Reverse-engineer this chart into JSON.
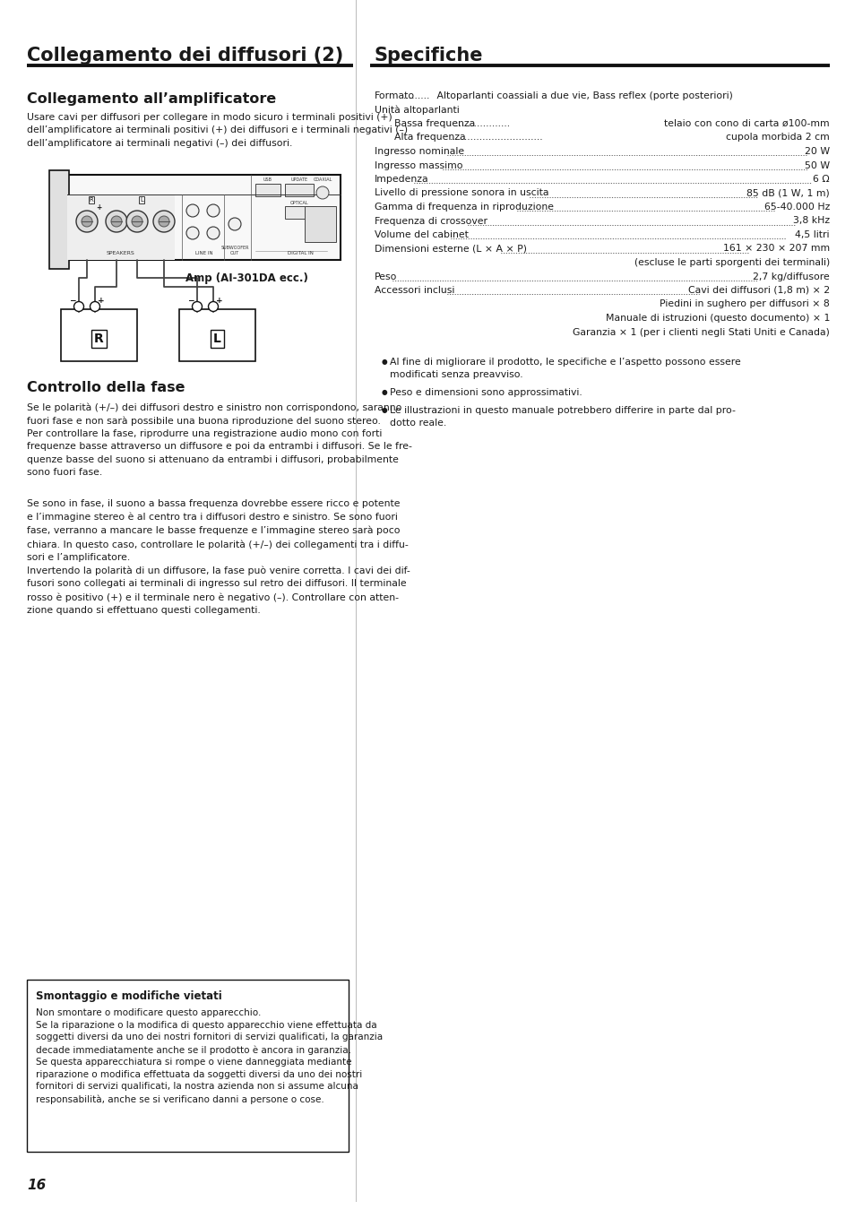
{
  "left_column_title": "Collegamento dei diffusori (2)",
  "right_column_title": "Specifiche",
  "section1_title": "Collegamento all’amplificatore",
  "section1_body": "Usare cavi per diffusori per collegare in modo sicuro i terminali positivi (+)\ndell’amplificatore ai terminali positivi (+) dei diffusori e i terminali negativi (–)\ndell’amplificatore ai terminali negativi (–) dei diffusori.",
  "amp_label": "Amp (AI-301DA ecc.)",
  "section2_title": "Controllo della fase",
  "section2_body1": "Se le polarità (+/–) dei diffusori destro e sinistro non corrispondono, saranno\nfuori fase e non sarà possibile una buona riproduzione del suono stereo.\nPer controllare la fase, riprodurre una registrazione audio mono con forti\nfrequenze basse attraverso un diffusore e poi da entrambi i diffusori. Se le fre-\nquenze basse del suono si attenuano da entrambi i diffusori, probabilmente\nsono fuori fase.",
  "section2_body2": "Se sono in fase, il suono a bassa frequenza dovrebbe essere ricco e potente\ne l’immagine stereo è al centro tra i diffusori destro e sinistro. Se sono fuori\nfase, verranno a mancare le basse frequenze e l’immagine stereo sarà poco\nchiara. In questo caso, controllare le polarità (+/–) dei collegamenti tra i diffu-\nsori e l’amplificatore.\nInvertendo la polarità di un diffusore, la fase può venire corretta. I cavi dei dif-\nfusori sono collegati ai terminali di ingresso sul retro dei diffusori. Il terminale\nrosso è positivo (+) e il terminale nero è negativo (–). Controllare con atten-\nzione quando si effettuano questi collegamenti.",
  "specs": [
    {
      "type": "full",
      "label": "Formato",
      "dots": ".........",
      "value": "Altoparlanti coassiali a due vie, Bass reflex (porte posteriori)"
    },
    {
      "type": "label_only",
      "label": "Unità altoparlanti"
    },
    {
      "type": "indented",
      "label": "Bassa frequenza",
      "dots": "...................",
      "value": "telaio con cono di carta ø100-mm"
    },
    {
      "type": "indented",
      "label": "Alta frequenza",
      "dots": "...............................",
      "value": "cupola morbida 2 cm"
    },
    {
      "type": "dotline",
      "label": "Ingresso nominale",
      "dots": true,
      "value": "20 W"
    },
    {
      "type": "dotline",
      "label": "Ingresso massimo",
      "dots": true,
      "value": "50 W"
    },
    {
      "type": "dotline",
      "label": "Impedenza",
      "dots": true,
      "value": "6 Ω"
    },
    {
      "type": "dotline",
      "label": "Livello di pressione sonora in uscita",
      "dots": true,
      "value": "85 dB (1 W, 1 m)"
    },
    {
      "type": "dotline",
      "label": "Gamma di frequenza in riproduzione",
      "dots": true,
      "value": "65-40.000 Hz"
    },
    {
      "type": "dotline",
      "label": "Frequenza di crossover",
      "dots": true,
      "value": "3,8 kHz"
    },
    {
      "type": "dotline",
      "label": "Volume del cabinet",
      "dots": true,
      "value": "4,5 litri"
    },
    {
      "type": "dotline",
      "label": "Dimensioni esterne (L × A × P)",
      "dots": true,
      "value": "161 × 230 × 207 mm"
    },
    {
      "type": "right_only",
      "value": "(escluse le parti sporgenti dei terminali)"
    },
    {
      "type": "dotline",
      "label": "Peso",
      "dots": true,
      "value": "2,7 kg/diffusore"
    },
    {
      "type": "dotline",
      "label": "Accessori inclusi",
      "dots": true,
      "value": "Cavi dei diffusori (1,8 m) × 2"
    },
    {
      "type": "right_only",
      "value": "Piedini in sughero per diffusori × 8"
    },
    {
      "type": "right_only",
      "value": "Manuale di istruzioni (questo documento) × 1"
    },
    {
      "type": "right_only",
      "value": "Garanzia × 1 (per i clienti negli Stati Uniti e Canada)"
    }
  ],
  "bullets": [
    "Al fine di migliorare il prodotto, le specifiche e l’aspetto possono essere\nmodificati senza preavviso.",
    "Peso e dimensioni sono approssimativi.",
    "Le illustrazioni in questo manuale potrebbero differire in parte dal pro-\ndotto reale."
  ],
  "warning_title": "Smontaggio e modifiche vietati",
  "warning_body": "Non smontare o modificare questo apparecchio.\nSe la riparazione o la modifica di questo apparecchio viene effettuata da\nsoggetti diversi da uno dei nostri fornitori di servizi qualificati, la garanzia\ndecade immediatamente anche se il prodotto è ancora in garanzia.\nSe questa apparecchiatura si rompe o viene danneggiata mediante\nriparazione o modifica effettuata da soggetti diversi da uno dei nostri\nfornitori di servizi qualificati, la nostra azienda non si assume alcuna\nresponsabilità, anche se si verificano danni a persone o cose.",
  "page_number": "16",
  "bg_color": "#ffffff",
  "text_color": "#1a1a1a"
}
